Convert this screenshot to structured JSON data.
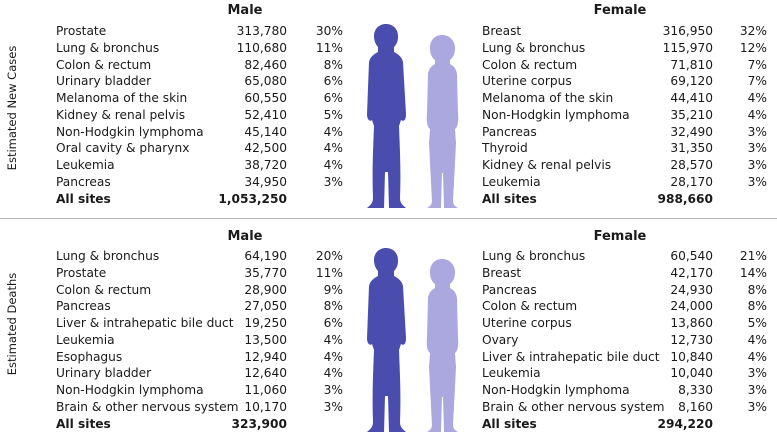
{
  "chart_data": {
    "type": "table",
    "colors": {
      "male": "#4a4dae",
      "female": "#aba8e0"
    },
    "sections": [
      {
        "label": "Estimated New Cases",
        "male": {
          "heading": "Male",
          "rows": [
            {
              "site": "Prostate",
              "count": "313,780",
              "pct": "30%"
            },
            {
              "site": "Lung & bronchus",
              "count": "110,680",
              "pct": "11%"
            },
            {
              "site": "Colon & rectum",
              "count": "82,460",
              "pct": "8%"
            },
            {
              "site": "Urinary bladder",
              "count": "65,080",
              "pct": "6%"
            },
            {
              "site": "Melanoma of the skin",
              "count": "60,550",
              "pct": "6%"
            },
            {
              "site": "Kidney & renal pelvis",
              "count": "52,410",
              "pct": "5%"
            },
            {
              "site": "Non-Hodgkin lymphoma",
              "count": "45,140",
              "pct": "4%"
            },
            {
              "site": "Oral cavity & pharynx",
              "count": "42,500",
              "pct": "4%"
            },
            {
              "site": "Leukemia",
              "count": "38,720",
              "pct": "4%"
            },
            {
              "site": "Pancreas",
              "count": "34,950",
              "pct": "3%"
            }
          ],
          "total": {
            "site": "All sites",
            "count": "1,053,250"
          }
        },
        "female": {
          "heading": "Female",
          "rows": [
            {
              "site": "Breast",
              "count": "316,950",
              "pct": "32%"
            },
            {
              "site": "Lung & bronchus",
              "count": "115,970",
              "pct": "12%"
            },
            {
              "site": "Colon & rectum",
              "count": "71,810",
              "pct": "7%"
            },
            {
              "site": "Uterine corpus",
              "count": "69,120",
              "pct": "7%"
            },
            {
              "site": "Melanoma of the skin",
              "count": "44,410",
              "pct": "4%"
            },
            {
              "site": "Non-Hodgkin lymphoma",
              "count": "35,210",
              "pct": "4%"
            },
            {
              "site": "Pancreas",
              "count": "32,490",
              "pct": "3%"
            },
            {
              "site": "Thyroid",
              "count": "31,350",
              "pct": "3%"
            },
            {
              "site": "Kidney & renal pelvis",
              "count": "28,570",
              "pct": "3%"
            },
            {
              "site": "Leukemia",
              "count": "28,170",
              "pct": "3%"
            }
          ],
          "total": {
            "site": "All sites",
            "count": "988,660"
          }
        }
      },
      {
        "label": "Estimated Deaths",
        "male": {
          "heading": "Male",
          "rows": [
            {
              "site": "Lung & bronchus",
              "count": "64,190",
              "pct": "20%"
            },
            {
              "site": "Prostate",
              "count": "35,770",
              "pct": "11%"
            },
            {
              "site": "Colon & rectum",
              "count": "28,900",
              "pct": "9%"
            },
            {
              "site": "Pancreas",
              "count": "27,050",
              "pct": "8%"
            },
            {
              "site": "Liver & intrahepatic bile duct",
              "count": "19,250",
              "pct": "6%"
            },
            {
              "site": "Leukemia",
              "count": "13,500",
              "pct": "4%"
            },
            {
              "site": "Esophagus",
              "count": "12,940",
              "pct": "4%"
            },
            {
              "site": "Urinary bladder",
              "count": "12,640",
              "pct": "4%"
            },
            {
              "site": "Non-Hodgkin lymphoma",
              "count": "11,060",
              "pct": "3%"
            },
            {
              "site": "Brain & other nervous system",
              "count": "10,170",
              "pct": "3%"
            }
          ],
          "total": {
            "site": "All sites",
            "count": "323,900"
          }
        },
        "female": {
          "heading": "Female",
          "rows": [
            {
              "site": "Lung & bronchus",
              "count": "60,540",
              "pct": "21%"
            },
            {
              "site": "Breast",
              "count": "42,170",
              "pct": "14%"
            },
            {
              "site": "Pancreas",
              "count": "24,930",
              "pct": "8%"
            },
            {
              "site": "Colon & rectum",
              "count": "24,000",
              "pct": "8%"
            },
            {
              "site": "Uterine corpus",
              "count": "13,860",
              "pct": "5%"
            },
            {
              "site": "Ovary",
              "count": "12,730",
              "pct": "4%"
            },
            {
              "site": "Liver & intrahepatic bile duct",
              "count": "10,840",
              "pct": "4%"
            },
            {
              "site": "Leukemia",
              "count": "10,040",
              "pct": "3%"
            },
            {
              "site": "Non-Hodgkin lymphoma",
              "count": "8,330",
              "pct": "3%"
            },
            {
              "site": "Brain & other nervous system",
              "count": "8,160",
              "pct": "3%"
            }
          ],
          "total": {
            "site": "All sites",
            "count": "294,220"
          }
        }
      }
    ]
  }
}
